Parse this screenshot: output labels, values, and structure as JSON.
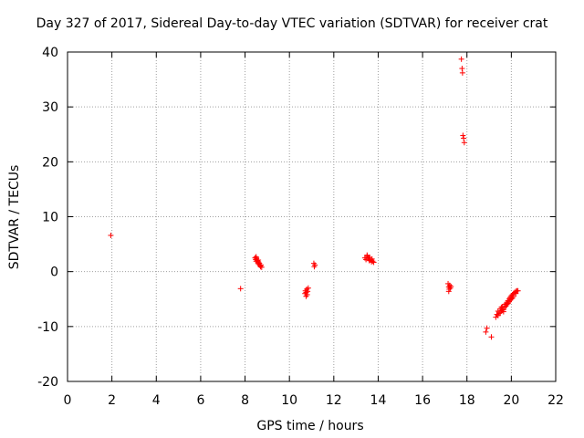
{
  "chart_data": {
    "type": "scatter",
    "title": "Day 327 of 2017, Sidereal Day-to-day VTEC variation (SDTVAR) for receiver crat",
    "xlabel": "GPS time / hours",
    "ylabel": "SDTVAR / TECUs",
    "xlim": [
      0,
      22
    ],
    "ylim": [
      -20,
      40
    ],
    "xticks": [
      0,
      2,
      4,
      6,
      8,
      10,
      12,
      14,
      16,
      18,
      20,
      22
    ],
    "yticks": [
      -20,
      -10,
      0,
      10,
      20,
      30,
      40
    ],
    "grid": true,
    "marker": "+",
    "color": "#ff0000",
    "series": [
      {
        "name": "SDTVAR",
        "points": [
          [
            1.95,
            6.6
          ],
          [
            7.8,
            -3.1
          ],
          [
            8.45,
            2.5
          ],
          [
            8.48,
            2.2
          ],
          [
            8.5,
            1.9
          ],
          [
            8.52,
            2.4
          ],
          [
            8.55,
            2.0
          ],
          [
            8.58,
            1.6
          ],
          [
            8.6,
            1.8
          ],
          [
            8.62,
            1.3
          ],
          [
            8.65,
            1.5
          ],
          [
            8.68,
            1.1
          ],
          [
            8.7,
            0.9
          ],
          [
            8.72,
            1.2
          ],
          [
            8.75,
            0.8
          ],
          [
            8.6,
            2.1
          ],
          [
            8.5,
            2.7
          ],
          [
            10.7,
            -4.0
          ],
          [
            10.72,
            -3.5
          ],
          [
            10.75,
            -3.8
          ],
          [
            10.78,
            -3.2
          ],
          [
            10.8,
            -4.2
          ],
          [
            10.82,
            -3.6
          ],
          [
            10.85,
            -3.0
          ],
          [
            10.75,
            -4.5
          ],
          [
            11.1,
            1.5
          ],
          [
            11.12,
            0.9
          ],
          [
            11.15,
            1.2
          ],
          [
            13.4,
            2.5
          ],
          [
            13.45,
            2.2
          ],
          [
            13.5,
            2.8
          ],
          [
            13.55,
            2.4
          ],
          [
            13.6,
            2.0
          ],
          [
            13.62,
            2.6
          ],
          [
            13.65,
            2.1
          ],
          [
            13.7,
            1.8
          ],
          [
            13.72,
            2.3
          ],
          [
            13.75,
            1.9
          ],
          [
            13.8,
            1.7
          ],
          [
            13.5,
            3.0
          ],
          [
            13.58,
            2.6
          ],
          [
            17.15,
            -2.2
          ],
          [
            17.18,
            -2.8
          ],
          [
            17.2,
            -3.2
          ],
          [
            17.22,
            -2.5
          ],
          [
            17.25,
            -3.0
          ],
          [
            17.18,
            -3.6
          ],
          [
            17.28,
            -2.7
          ],
          [
            17.75,
            38.7
          ],
          [
            17.78,
            37.0
          ],
          [
            17.8,
            36.2
          ],
          [
            17.82,
            24.8
          ],
          [
            17.85,
            24.3
          ],
          [
            17.88,
            23.5
          ],
          [
            18.85,
            -11.0
          ],
          [
            18.9,
            -10.3
          ],
          [
            19.1,
            -11.9
          ],
          [
            19.3,
            -8.3
          ],
          [
            19.35,
            -7.8
          ],
          [
            19.4,
            -7.2
          ],
          [
            19.45,
            -7.6
          ],
          [
            19.5,
            -6.8
          ],
          [
            19.55,
            -7.1
          ],
          [
            19.6,
            -6.4
          ],
          [
            19.65,
            -6.9
          ],
          [
            19.7,
            -6.0
          ],
          [
            19.75,
            -6.3
          ],
          [
            19.8,
            -5.7
          ],
          [
            19.85,
            -5.3
          ],
          [
            19.9,
            -5.0
          ],
          [
            19.95,
            -4.7
          ],
          [
            20.0,
            -4.4
          ],
          [
            20.05,
            -4.2
          ],
          [
            20.1,
            -4.0
          ],
          [
            20.15,
            -3.8
          ],
          [
            20.2,
            -3.6
          ],
          [
            20.25,
            -3.5
          ],
          [
            20.3,
            -3.5
          ],
          [
            19.5,
            -7.5
          ],
          [
            19.6,
            -7.0
          ],
          [
            19.7,
            -6.5
          ],
          [
            19.8,
            -6.0
          ],
          [
            19.9,
            -5.5
          ],
          [
            20.0,
            -5.0
          ],
          [
            20.1,
            -4.5
          ],
          [
            20.2,
            -4.0
          ],
          [
            19.4,
            -8.0
          ],
          [
            19.55,
            -6.5
          ],
          [
            19.65,
            -7.3
          ],
          [
            19.75,
            -5.9
          ],
          [
            19.85,
            -5.8
          ],
          [
            19.95,
            -5.2
          ],
          [
            20.05,
            -4.8
          ]
        ]
      }
    ]
  }
}
